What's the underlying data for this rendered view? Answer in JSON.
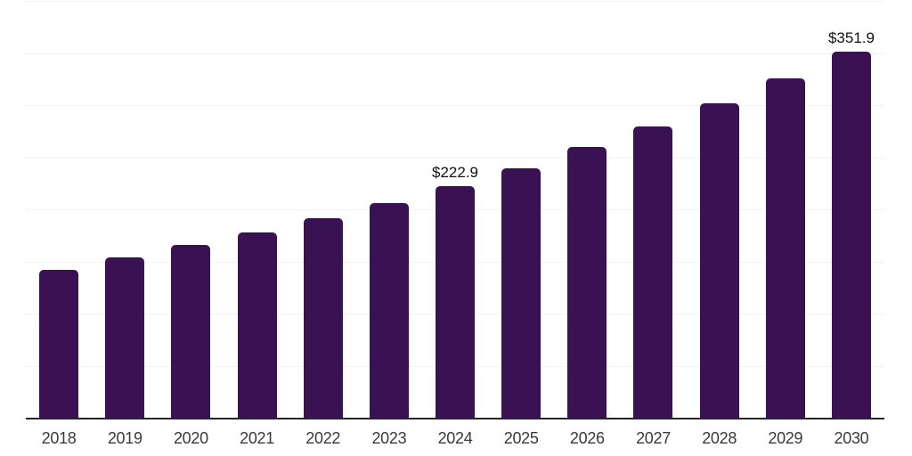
{
  "chart_data": {
    "type": "bar",
    "title": "",
    "xlabel": "",
    "ylabel": "",
    "categories": [
      "2018",
      "2019",
      "2020",
      "2021",
      "2022",
      "2023",
      "2024",
      "2025",
      "2026",
      "2027",
      "2028",
      "2029",
      "2030"
    ],
    "values": [
      143.0,
      155.0,
      166.4,
      178.9,
      192.0,
      207.1,
      222.9,
      240.4,
      260.4,
      280.6,
      302.6,
      326.2,
      351.9
    ],
    "value_labels": [
      "",
      "",
      "",
      "",
      "",
      "",
      "$222.9",
      "",
      "",
      "",
      "",
      "",
      "$351.9"
    ],
    "ylim": [
      0,
      400
    ],
    "gridline_step": 50,
    "grid": true,
    "legend": false,
    "y_tick_labels_shown": false
  },
  "colors": {
    "background": "#FFFFFF",
    "bar": "#3A1253",
    "axis_line": "#26232B",
    "gridline": "#F3F3F5",
    "x_label": "#3A3A3A",
    "value_label": "#121212"
  }
}
